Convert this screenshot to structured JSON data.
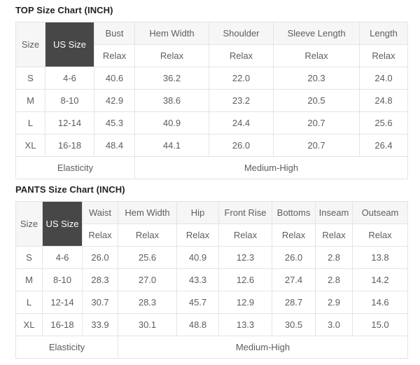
{
  "colors": {
    "us_size_bg": "#474747",
    "us_size_text": "#ffffff",
    "header_bg": "#f6f6f6",
    "border": "#e4e4e4"
  },
  "top_chart": {
    "title": "TOP Size Chart (INCH)",
    "size_header": "Size",
    "us_size_header": "US Size",
    "fit_label": "Relax",
    "columns": [
      "Bust",
      "Hem Width",
      "Shoulder",
      "Sleeve Length",
      "Length"
    ],
    "rows": [
      {
        "size": "S",
        "us_size": "4-6",
        "values": [
          "40.6",
          "36.2",
          "22.0",
          "20.3",
          "24.0"
        ]
      },
      {
        "size": "M",
        "us_size": "8-10",
        "values": [
          "42.9",
          "38.6",
          "23.2",
          "20.5",
          "24.8"
        ]
      },
      {
        "size": "L",
        "us_size": "12-14",
        "values": [
          "45.3",
          "40.9",
          "24.4",
          "20.7",
          "25.6"
        ]
      },
      {
        "size": "XL",
        "us_size": "16-18",
        "values": [
          "48.4",
          "44.1",
          "26.0",
          "20.7",
          "26.4"
        ]
      }
    ],
    "elasticity_label": "Elasticity",
    "elasticity_value": "Medium-High"
  },
  "pants_chart": {
    "title": "PANTS Size Chart (INCH)",
    "size_header": "Size",
    "us_size_header": "US Size",
    "fit_label": "Relax",
    "columns": [
      "Waist",
      "Hem Width",
      "Hip",
      "Front Rise",
      "Bottoms",
      "Inseam",
      "Outseam"
    ],
    "rows": [
      {
        "size": "S",
        "us_size": "4-6",
        "values": [
          "26.0",
          "25.6",
          "40.9",
          "12.3",
          "26.0",
          "2.8",
          "13.8"
        ]
      },
      {
        "size": "M",
        "us_size": "8-10",
        "values": [
          "28.3",
          "27.0",
          "43.3",
          "12.6",
          "27.4",
          "2.8",
          "14.2"
        ]
      },
      {
        "size": "L",
        "us_size": "12-14",
        "values": [
          "30.7",
          "28.3",
          "45.7",
          "12.9",
          "28.7",
          "2.9",
          "14.6"
        ]
      },
      {
        "size": "XL",
        "us_size": "16-18",
        "values": [
          "33.9",
          "30.1",
          "48.8",
          "13.3",
          "30.5",
          "3.0",
          "15.0"
        ]
      }
    ],
    "elasticity_label": "Elasticity",
    "elasticity_value": "Medium-High"
  }
}
